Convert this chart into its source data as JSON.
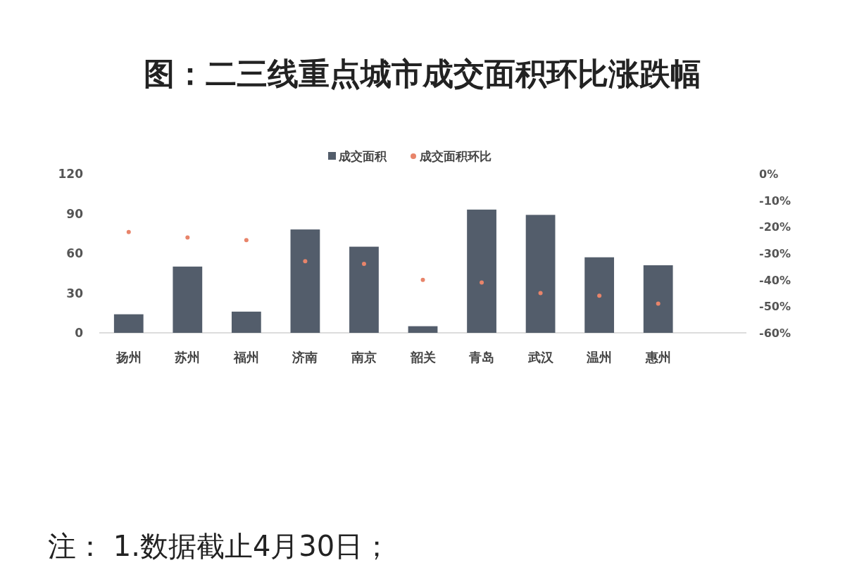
{
  "chart_data": {
    "type": "bar",
    "title": "图：二三线重点城市成交面积环比涨跌幅",
    "categories": [
      "扬州",
      "苏州",
      "福州",
      "济南",
      "南京",
      "韶关",
      "青岛",
      "武汉",
      "温州",
      "惠州"
    ],
    "series": [
      {
        "name": "成交面积",
        "color": "#535d6b",
        "values": [
          14,
          50,
          16,
          78,
          65,
          5,
          93,
          89,
          57,
          51
        ]
      },
      {
        "name": "成交面积环比",
        "type": "scatter",
        "axis": "y2",
        "marker": "circle",
        "color": "#e8846a",
        "values": [
          -22,
          -24,
          -25,
          -33,
          -34,
          -40,
          -41,
          -45,
          -46,
          -49
        ]
      }
    ],
    "ylim": [
      0,
      120
    ],
    "yticks": [
      0,
      30,
      60,
      90,
      120
    ],
    "y2lim": [
      -60,
      0
    ],
    "y2ticks": [
      {
        "value": 0,
        "label": "0%"
      },
      {
        "value": -10,
        "label": "-10%"
      },
      {
        "value": -20,
        "label": "-20%"
      },
      {
        "value": -30,
        "label": "-30%"
      },
      {
        "value": -40,
        "label": "-40%"
      },
      {
        "value": -50,
        "label": "-50%"
      },
      {
        "value": -60,
        "label": "-60%"
      }
    ],
    "legend": "top",
    "annotations": [
      "注： 1.数据截止4月30日；"
    ]
  }
}
